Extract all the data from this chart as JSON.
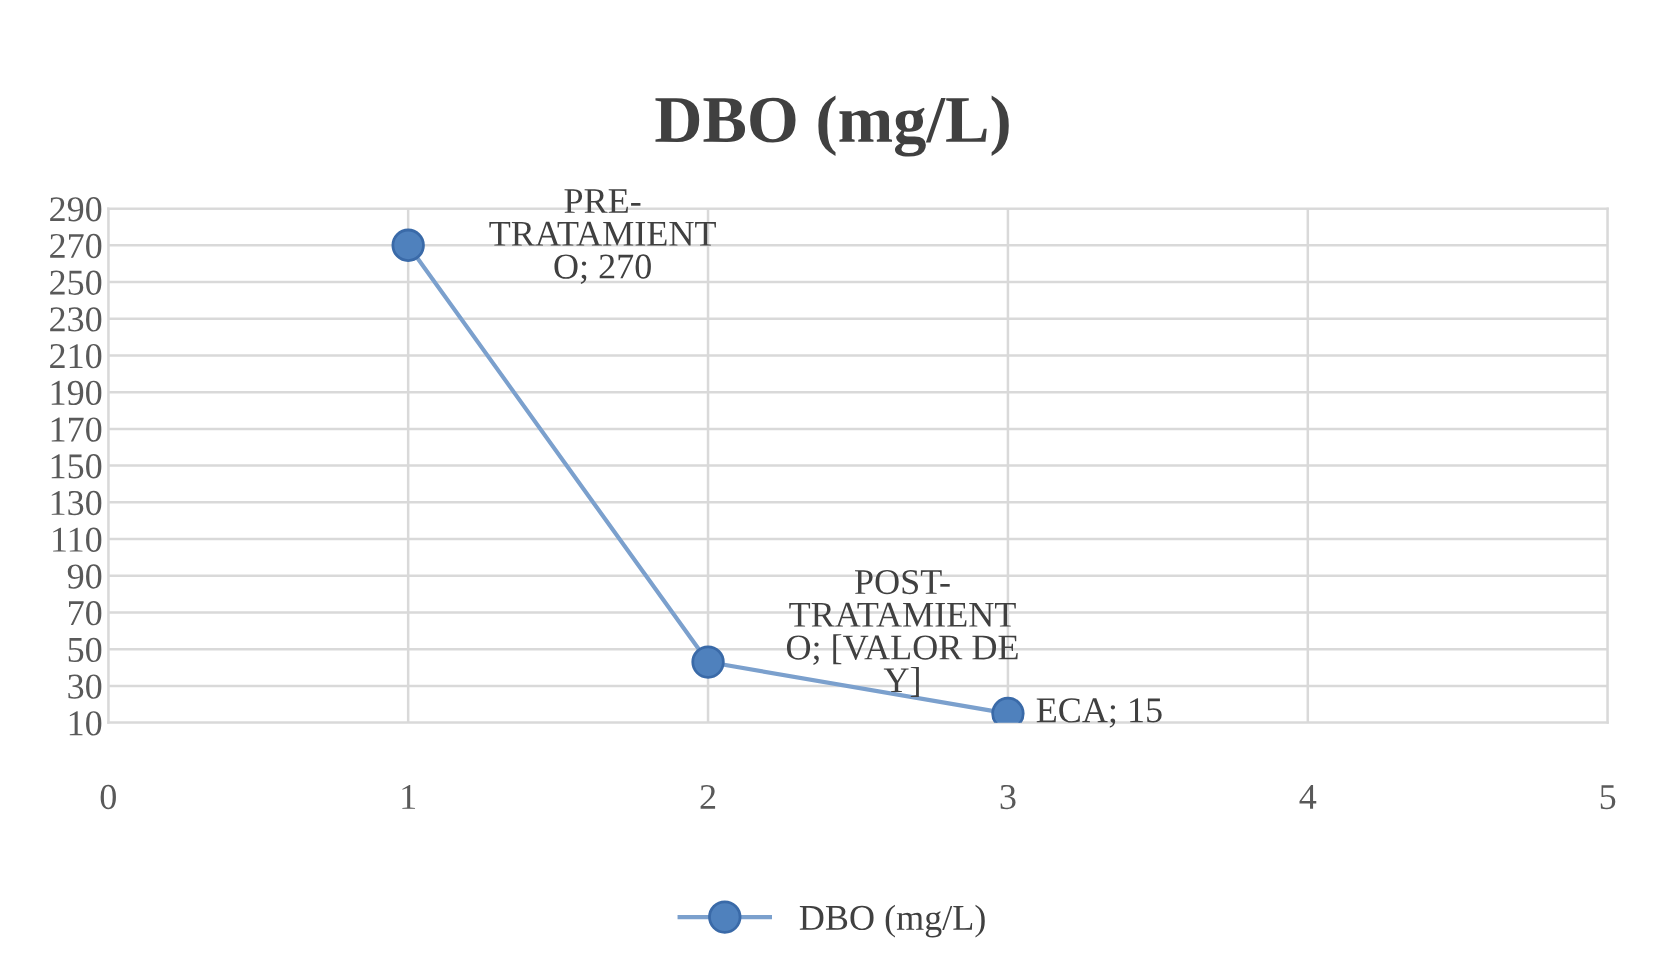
{
  "chart_data": {
    "type": "line",
    "title": "DBO (mg/L)",
    "x": [
      1,
      2,
      3
    ],
    "series": [
      {
        "name": "DBO (mg/L)",
        "color": "#4f81bd",
        "values": [
          270,
          43,
          15
        ]
      }
    ],
    "xlim": [
      0,
      5
    ],
    "xticks": [
      0,
      1,
      2,
      3,
      4,
      5
    ],
    "ylim": [
      10,
      290
    ],
    "yticks": [
      10,
      30,
      50,
      70,
      90,
      110,
      130,
      150,
      170,
      190,
      210,
      230,
      250,
      270,
      290
    ],
    "grid": true,
    "legend": "bottom",
    "marker": "circle",
    "line_style": "solid",
    "annotations": [
      {
        "text": "PRE-\nTRATAMIENT\nO; 270",
        "x": 1,
        "y": 270
      },
      {
        "text": "POST-\nTRATAMIENT\nO; [VALOR DE\nY]",
        "x": 2,
        "y": 43
      },
      {
        "text": "ECA; 15",
        "x": 3,
        "y": 15
      }
    ]
  }
}
